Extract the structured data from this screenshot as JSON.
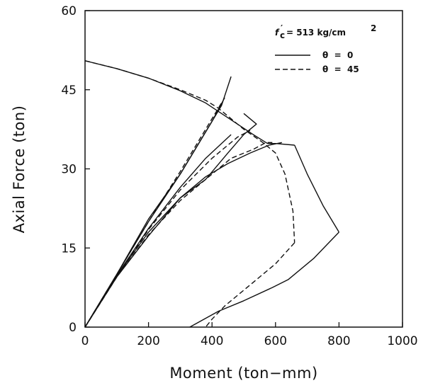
{
  "chart_data": {
    "type": "line",
    "title": "",
    "xlabel": "Moment  (ton−mm)",
    "ylabel": "Axial Force  (ton)",
    "xlim": [
      0,
      1000
    ],
    "ylim": [
      0,
      60
    ],
    "xticks": [
      "0",
      "200",
      "400",
      "600",
      "800",
      "1000"
    ],
    "yticks": [
      "0",
      "15",
      "30",
      "45",
      "60"
    ],
    "grid": false,
    "legend_position": "top-right",
    "annotation": {
      "fc_symbol": "f",
      "fc_prime": "′",
      "fc_sub": "c",
      "text": "= 513  kg/cm",
      "superscript": "2"
    },
    "series": [
      {
        "name": "θ  =  0",
        "style": "solid",
        "curves": [
          {
            "points": [
              [
                0,
                50.5
              ],
              [
                100,
                49
              ],
              [
                200,
                47.2
              ],
              [
                300,
                44.8
              ],
              [
                380,
                42.5
              ],
              [
                430,
                40.5
              ],
              [
                480,
                38.5
              ],
              [
                530,
                36.5
              ],
              [
                575,
                34.8
              ],
              [
                600,
                34.8
              ],
              [
                660,
                34.5
              ]
            ]
          },
          {
            "points": [
              [
                660,
                34.5
              ],
              [
                700,
                29
              ],
              [
                750,
                23
              ],
              [
                800,
                18
              ]
            ]
          },
          {
            "points": [
              [
                800,
                18
              ],
              [
                720,
                13
              ],
              [
                640,
                9
              ],
              [
                590,
                7.5
              ],
              [
                500,
                5
              ],
              [
                420,
                3
              ],
              [
                330,
                0
              ]
            ]
          },
          {
            "points": [
              [
                0,
                0
              ],
              [
                100,
                10
              ],
              [
                200,
                20
              ],
              [
                300,
                29
              ],
              [
                400,
                39
              ],
              [
                430,
                42
              ],
              [
                460,
                47.5
              ]
            ]
          },
          {
            "points": [
              [
                0,
                0
              ],
              [
                100,
                10
              ],
              [
                200,
                20.5
              ],
              [
                300,
                29
              ],
              [
                400,
                39
              ],
              [
                440,
                43.5
              ]
            ]
          },
          {
            "points": [
              [
                0,
                0
              ],
              [
                100,
                9.8
              ],
              [
                200,
                18.7
              ],
              [
                300,
                26.5
              ],
              [
                380,
                32
              ],
              [
                460,
                36.5
              ]
            ]
          },
          {
            "points": [
              [
                0,
                0
              ],
              [
                100,
                9.7
              ],
              [
                200,
                18
              ],
              [
                300,
                24.5
              ],
              [
                380,
                28
              ],
              [
                450,
                33
              ],
              [
                500,
                36.5
              ],
              [
                540,
                38.5
              ],
              [
                500,
                40.5
              ]
            ]
          },
          {
            "points": [
              [
                0,
                0
              ],
              [
                100,
                9.5
              ],
              [
                200,
                17.3
              ],
              [
                300,
                24.5
              ],
              [
                380,
                28.5
              ],
              [
                450,
                31
              ],
              [
                520,
                33
              ],
              [
                580,
                34.5
              ],
              [
                620,
                35
              ]
            ]
          }
        ]
      },
      {
        "name": "θ  =  45",
        "style": "dashed",
        "curves": [
          {
            "points": [
              [
                0,
                50.5
              ],
              [
                100,
                49
              ],
              [
                200,
                47.2
              ],
              [
                300,
                45
              ],
              [
                380,
                43
              ],
              [
                420,
                41.5
              ],
              [
                460,
                39.5
              ],
              [
                500,
                37.5
              ],
              [
                560,
                35
              ],
              [
                600,
                33
              ],
              [
                630,
                29
              ],
              [
                655,
                22
              ],
              [
                660,
                16
              ]
            ]
          },
          {
            "points": [
              [
                660,
                16
              ],
              [
                600,
                12
              ],
              [
                520,
                8
              ],
              [
                440,
                4
              ],
              [
                400,
                1.5
              ],
              [
                380,
                0
              ]
            ]
          },
          {
            "points": [
              [
                0,
                0
              ],
              [
                100,
                10
              ],
              [
                200,
                20
              ],
              [
                300,
                29.5
              ],
              [
                380,
                37.5
              ],
              [
                430,
                42.5
              ]
            ]
          },
          {
            "points": [
              [
                0,
                0
              ],
              [
                100,
                9.5
              ],
              [
                200,
                18.5
              ],
              [
                300,
                26
              ],
              [
                400,
                32
              ],
              [
                480,
                36
              ],
              [
                520,
                37.3
              ]
            ]
          },
          {
            "points": [
              [
                0,
                0
              ],
              [
                100,
                9.5
              ],
              [
                200,
                17.5
              ],
              [
                300,
                24
              ],
              [
                380,
                28
              ],
              [
                460,
                32
              ],
              [
                530,
                33.7
              ],
              [
                570,
                35
              ],
              [
                590,
                35
              ]
            ]
          }
        ]
      }
    ]
  }
}
